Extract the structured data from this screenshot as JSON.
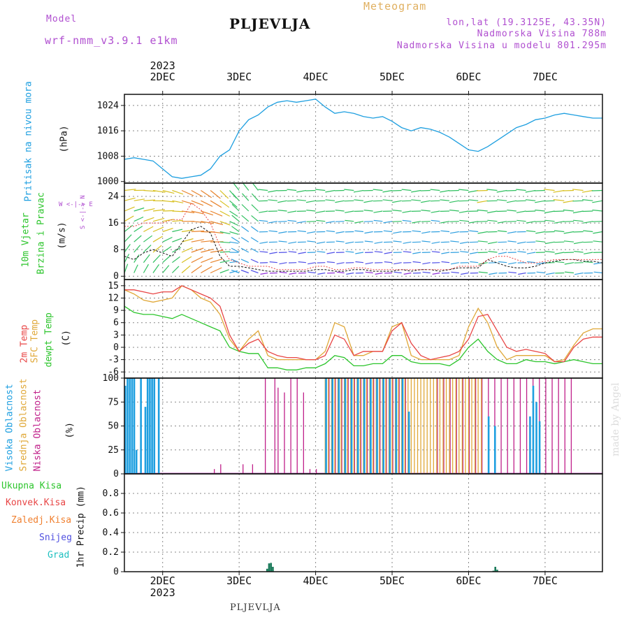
{
  "header": {
    "model_label": "Model",
    "model_name": "wrf-nmm_v3.9.1 e1km",
    "station": "PLJEVLJA",
    "title": "Meteogram",
    "coords": "lon,lat (19.3125E, 43.35N)",
    "elevation": "Nadmorska Visina 788m",
    "model_elevation": "Nadmorska Visina u modelu 801.295m",
    "footer_station": "PLJEVLJA",
    "watermark": "made by Angel"
  },
  "colors": {
    "pressure": "#1e9fe0",
    "temp2m": "#e84545",
    "sfc": "#e0a838",
    "dewpt": "#2cc52c",
    "high_cloud": "#1e9fe0",
    "mid_cloud": "#e0a838",
    "low_cloud": "#c0208a",
    "precip_total": "#2cc52c",
    "precip_conv": "#e84545",
    "precip_frozen": "#f08030",
    "snow": "#5050e0",
    "graupel": "#20c0c0",
    "header_purple": "#b04fd0",
    "header_gold": "#e0b060",
    "grid": "#888888"
  },
  "chart_data": {
    "type": "multi-panel meteogram",
    "x_ticks_top": [
      "2DEC",
      "3DEC",
      "4DEC",
      "5DEC",
      "6DEC",
      "7DEC"
    ],
    "year_top": "2023",
    "x_ticks_bottom": [
      "2DEC",
      "3DEC",
      "4DEC",
      "5DEC",
      "6DEC",
      "7DEC"
    ],
    "year_bottom": "2023",
    "hours": [
      0,
      3,
      6,
      9,
      12,
      15,
      18,
      21,
      24,
      27,
      30,
      33,
      36,
      39,
      42,
      45,
      48,
      51,
      54,
      57,
      60,
      63,
      66,
      69,
      72,
      75,
      78,
      81,
      84,
      87,
      90,
      93,
      96,
      99,
      102,
      105,
      108,
      111,
      114,
      117,
      120,
      123,
      126,
      129,
      132,
      135,
      138,
      141,
      144,
      147,
      150
    ],
    "pressure": {
      "ylabel": "Pritisak na nivou mora",
      "unit": "(hPa)",
      "yticks": [
        1000,
        1008,
        1016,
        1024
      ],
      "ylim": [
        999.5,
        1027.5
      ],
      "values": [
        1007,
        1007.5,
        1007,
        1006.5,
        1004,
        1001.5,
        1001,
        1001.5,
        1002,
        1004,
        1008,
        1010,
        1016,
        1019.5,
        1021,
        1023.5,
        1025,
        1025.5,
        1025,
        1025.5,
        1026,
        1023.5,
        1021.5,
        1022,
        1021.5,
        1020.5,
        1020,
        1020.5,
        1019,
        1017,
        1016,
        1017,
        1016.5,
        1015.5,
        1014,
        1012,
        1010,
        1009.5,
        1011,
        1013,
        1015,
        1017,
        1018,
        1019.5,
        1020,
        1021,
        1021.5,
        1021,
        1020.5,
        1020,
        1020
      ]
    },
    "wind": {
      "ylabel1": "10m Vjetar",
      "ylabel2": "Brzina i Pravac",
      "unit": "(m/s)",
      "compass": "W <-|-> E",
      "compass_v": "S <-|-> N",
      "yticks": [
        0,
        8,
        16,
        24
      ],
      "ylim": [
        -1,
        28
      ],
      "speed": [
        6,
        5,
        7,
        8,
        7,
        6,
        10,
        14,
        15,
        13,
        6,
        3,
        3,
        2.5,
        2,
        1.5,
        1.5,
        1.5,
        1.5,
        1.5,
        2,
        2,
        1.5,
        1.5,
        2,
        2,
        1.5,
        1.5,
        1.5,
        2,
        1.5,
        2,
        2,
        1.5,
        2,
        2.5,
        2.5,
        2.5,
        5,
        4,
        3,
        2.5,
        2.5,
        3,
        4,
        4.5,
        5,
        5,
        4.5,
        4.5,
        4
      ],
      "gust": [
        15,
        15,
        16,
        16,
        16,
        17,
        17,
        22,
        20,
        16,
        9,
        5,
        4,
        3,
        3,
        3,
        2,
        2,
        2,
        2,
        3,
        3,
        2,
        2,
        2.5,
        2.5,
        2,
        2,
        2,
        2,
        2,
        2,
        2,
        2,
        2,
        3,
        3,
        3,
        5,
        6,
        6,
        5,
        4,
        4,
        4.5,
        5,
        5,
        5,
        5,
        5,
        5
      ]
    },
    "temperature": {
      "ylabel1": "2m Temp",
      "ylabel2": "SFC Temp",
      "ylabel3": "dewpt Temp",
      "unit": "(C)",
      "yticks": [
        -6,
        -3,
        0,
        3,
        6,
        9,
        12,
        15
      ],
      "ylim": [
        -7.5,
        16.5
      ],
      "temp2m": [
        14,
        14,
        13.5,
        13,
        13.5,
        13.5,
        15,
        14,
        13,
        12,
        10,
        3,
        -1,
        1,
        2,
        -1,
        -2,
        -2.5,
        -2.5,
        -3,
        -3,
        -2,
        3,
        2,
        -2,
        -1,
        -1,
        -1,
        4,
        6,
        1,
        -2,
        -3,
        -2.5,
        -2,
        -1,
        2,
        7.5,
        8,
        4,
        0,
        -1,
        -0.5,
        -1,
        -1.5,
        -3.5,
        -3.5,
        0,
        2,
        2.5,
        2.5
      ],
      "sfc": [
        14,
        13,
        11.5,
        11,
        11.5,
        12,
        15,
        14,
        12,
        11,
        8,
        2,
        -1,
        2,
        4,
        -2,
        -3,
        -3,
        -3,
        -3,
        -3,
        -1,
        6,
        5,
        -2,
        -2,
        -1,
        -1,
        5,
        6,
        -2,
        -3,
        -3,
        -3,
        -3,
        -2,
        5,
        9.5,
        6,
        0,
        -3,
        -2,
        -2,
        -2,
        -2,
        -3.5,
        -3,
        0.5,
        3.5,
        4.5,
        4.5
      ],
      "dewpt": [
        10,
        8.5,
        8,
        8,
        7.5,
        7,
        8,
        7,
        6,
        5,
        4,
        0,
        -1,
        -1.5,
        -1.5,
        -5,
        -5,
        -5.5,
        -5.5,
        -5,
        -5,
        -4,
        -2,
        -2.5,
        -4.5,
        -4.5,
        -4,
        -4,
        -2,
        -2,
        -3.5,
        -4,
        -4,
        -4,
        -4.5,
        -3,
        0,
        2,
        -1,
        -3,
        -4,
        -4,
        -3,
        -3.5,
        -3.5,
        -4,
        -3.5,
        -3,
        -3.5,
        -4,
        -4
      ]
    },
    "clouds": {
      "ylabel1": "Visoka Oblacnost",
      "ylabel2": "Srednja Oblacnost",
      "ylabel3": "Niska Oblacnost",
      "unit": "(%)",
      "yticks": [
        0,
        25,
        50,
        75,
        100
      ],
      "ylim": [
        0,
        100
      ],
      "high_hours": [
        0,
        0.7,
        1.4,
        2.1,
        2.8,
        3.5,
        4.9,
        6.3,
        7,
        7.7,
        8.4,
        9.1,
        10.5
      ],
      "high_values": [
        92,
        100,
        100,
        100,
        100,
        25,
        100,
        70,
        100,
        100,
        100,
        100,
        100
      ],
      "mid_hours": [
        63,
        64,
        65,
        66,
        67,
        68,
        69,
        70,
        71,
        72,
        73,
        74,
        75,
        76,
        77,
        78,
        79,
        80,
        81,
        82,
        83,
        84,
        85,
        86,
        87,
        88,
        89,
        90,
        91,
        92,
        93,
        94,
        95,
        96,
        97,
        98,
        99,
        100,
        101,
        102,
        103,
        104,
        105,
        106,
        107,
        108,
        109,
        110,
        111,
        112
      ],
      "mid_values": [
        100,
        100,
        100,
        100,
        100,
        100,
        100,
        100,
        100,
        100,
        100,
        100,
        100,
        100,
        100,
        100,
        100,
        100,
        100,
        100,
        100,
        100,
        100,
        100,
        100,
        100,
        100,
        100,
        100,
        100,
        100,
        100,
        100,
        100,
        100,
        100,
        100,
        100,
        100,
        100,
        100,
        100,
        100,
        100,
        100,
        100,
        100,
        100,
        100,
        100
      ],
      "low_hours": [
        28,
        30,
        37,
        40,
        44,
        47,
        48,
        50,
        52,
        54,
        56,
        58,
        60,
        64,
        66,
        68,
        70,
        72,
        74,
        76,
        78,
        80,
        82,
        84,
        86,
        88,
        98,
        100,
        102,
        104,
        106,
        108,
        110,
        112,
        114,
        116,
        118,
        120,
        122,
        124,
        126,
        128,
        130,
        132,
        134,
        136,
        138,
        140
      ],
      "low_values": [
        5,
        10,
        10,
        10,
        100,
        100,
        90,
        85,
        100,
        100,
        85,
        5,
        5,
        100,
        100,
        100,
        100,
        100,
        100,
        100,
        100,
        100,
        100,
        100,
        100,
        100,
        100,
        100,
        100,
        100,
        100,
        100,
        100,
        100,
        100,
        100,
        100,
        100,
        100,
        100,
        100,
        100,
        100,
        100,
        100,
        100,
        100,
        100
      ]
    },
    "precip": {
      "ylabel": "1hr Precip (mm)",
      "legend": [
        "Ukupna Kisa",
        "Konvek.Kisa",
        "Zaledj.Kisa",
        "Snijeg",
        "Grad"
      ],
      "yticks": [
        0,
        0.2,
        0.4,
        0.6,
        0.8
      ],
      "ylim": [
        0,
        1.0
      ],
      "hours": [
        44.5,
        45.1,
        45.7,
        46.3,
        115.5,
        116.1,
        116.7
      ],
      "values": [
        0.03,
        0.085,
        0.09,
        0.05,
        0.01,
        0.05,
        0.02
      ]
    }
  }
}
